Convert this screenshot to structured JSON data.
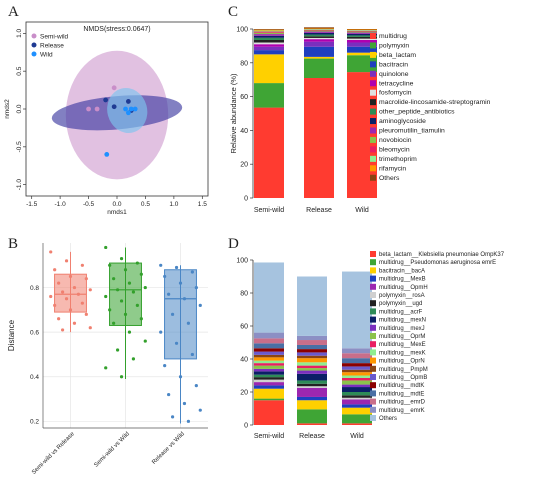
{
  "panels": {
    "a": "A",
    "b": "B",
    "c": "C",
    "d": "D"
  },
  "chart_data": [
    {
      "id": "A",
      "type": "scatter",
      "title": "NMDS(stress:0.0647)",
      "xlabel": "nmds1",
      "ylabel": "nmds2",
      "xlim": [
        -1.6,
        1.6
      ],
      "ylim": [
        -1.15,
        1.15
      ],
      "xticks": [
        "-1.5",
        "-1.0",
        "-0.5",
        "0.0",
        "0.5",
        "1.0",
        "1.5"
      ],
      "yticks": [
        "-1.0",
        "-0.5",
        "0.0",
        "0.5",
        "1.0"
      ],
      "legend_position": "top-left",
      "series": [
        {
          "name": "Semi-wild",
          "color": "#c98ec9",
          "points": [
            [
              -0.05,
              0.28
            ],
            [
              -0.35,
              0.0
            ],
            [
              -0.5,
              0.0
            ]
          ]
        },
        {
          "name": "Release",
          "color": "#1f3a93",
          "points": [
            [
              -0.2,
              0.12
            ],
            [
              -0.05,
              0.03
            ],
            [
              0.2,
              0.1
            ],
            [
              0.25,
              -0.02
            ]
          ]
        },
        {
          "name": "Wild",
          "color": "#1e90ff",
          "points": [
            [
              0.15,
              0.0
            ],
            [
              0.25,
              0.0
            ],
            [
              0.32,
              0.0
            ],
            [
              0.2,
              -0.05
            ],
            [
              -0.18,
              -0.6
            ]
          ]
        }
      ],
      "ellipses": [
        {
          "series": "Semi-wild",
          "color": "#c98ec9",
          "opacity": 0.55,
          "cx": 0.0,
          "cy": -0.08,
          "rx": 0.9,
          "ry": 0.85,
          "angle": 0
        },
        {
          "series": "Release",
          "color": "#3f3ca2",
          "opacity": 0.65,
          "cx": 0.0,
          "cy": -0.05,
          "rx": 1.15,
          "ry": 0.22,
          "angle": -5
        },
        {
          "series": "Wild",
          "color": "#7dc4ee",
          "opacity": 0.65,
          "cx": 0.18,
          "cy": -0.02,
          "rx": 0.35,
          "ry": 0.3,
          "angle": -15
        }
      ]
    },
    {
      "id": "B",
      "type": "box",
      "xlabel": "",
      "ylabel": "Distance",
      "ylim": [
        0.17,
        1.0
      ],
      "yticks": [
        0.2,
        0.4,
        0.6,
        0.8
      ],
      "categories": [
        "Semi-wild vs Release",
        "Semi-wild vs Wild",
        "Release vs Wild"
      ],
      "boxes": [
        {
          "color": "#f08070",
          "q1": 0.69,
          "median": 0.77,
          "q3": 0.86,
          "whisker_low": 0.6,
          "whisker_high": 0.96,
          "points": [
            0.96,
            0.92,
            0.9,
            0.88,
            0.85,
            0.84,
            0.82,
            0.8,
            0.79,
            0.78,
            0.77,
            0.76,
            0.75,
            0.73,
            0.72,
            0.7,
            0.68,
            0.66,
            0.64,
            0.62,
            0.61
          ]
        },
        {
          "color": "#33a02c",
          "q1": 0.63,
          "median": 0.79,
          "q3": 0.91,
          "whisker_low": 0.39,
          "whisker_high": 0.98,
          "points": [
            0.98,
            0.93,
            0.91,
            0.9,
            0.88,
            0.86,
            0.84,
            0.82,
            0.8,
            0.79,
            0.78,
            0.76,
            0.74,
            0.72,
            0.7,
            0.68,
            0.66,
            0.64,
            0.6,
            0.56,
            0.52,
            0.48,
            0.44,
            0.4
          ]
        },
        {
          "color": "#4a86c5",
          "q1": 0.48,
          "median": 0.75,
          "q3": 0.88,
          "whisker_low": 0.19,
          "whisker_high": 0.9,
          "points": [
            0.9,
            0.89,
            0.87,
            0.85,
            0.82,
            0.8,
            0.77,
            0.75,
            0.72,
            0.68,
            0.64,
            0.6,
            0.55,
            0.5,
            0.45,
            0.4,
            0.36,
            0.32,
            0.28,
            0.25,
            0.22,
            0.2
          ]
        }
      ]
    },
    {
      "id": "C",
      "type": "bar",
      "stacked": true,
      "ylabel": "Relative abundance (%)",
      "ylim": [
        0,
        100
      ],
      "yticks": [
        0,
        20,
        40,
        60,
        80,
        100
      ],
      "categories": [
        "Semi-wild",
        "Release",
        "Wild"
      ],
      "legend_position": "right",
      "series": [
        {
          "name": "multidrug",
          "color": "#ff3b30",
          "values": [
            53.5,
            71.0,
            74.5
          ]
        },
        {
          "name": "polymyxin",
          "color": "#3fa535",
          "values": [
            14.5,
            11.5,
            10.0
          ]
        },
        {
          "name": "beta_lactam",
          "color": "#ffd000",
          "values": [
            17.0,
            1.0,
            1.5
          ]
        },
        {
          "name": "bacitracin",
          "color": "#1f3fbf",
          "values": [
            2.5,
            6.0,
            3.5
          ]
        },
        {
          "name": "quinolone",
          "color": "#7b2fbe",
          "values": [
            2.0,
            3.0,
            2.5
          ]
        },
        {
          "name": "tetracycline",
          "color": "#b000b0",
          "values": [
            1.5,
            1.5,
            1.5
          ]
        },
        {
          "name": "fosfomycin",
          "color": "#e0e0e0",
          "values": [
            1.0,
            0.7,
            0.8
          ]
        },
        {
          "name": "macrolide-lincosamide-streptogramin",
          "color": "#222222",
          "values": [
            1.5,
            1.0,
            1.0
          ]
        },
        {
          "name": "other_peptide_antibiotics",
          "color": "#2e8b57",
          "values": [
            1.3,
            1.0,
            0.9
          ]
        },
        {
          "name": "aminoglycoside",
          "color": "#0b1f66",
          "values": [
            1.2,
            1.0,
            0.9
          ]
        },
        {
          "name": "pleuromutilin_tiamulin",
          "color": "#9c27b0",
          "values": [
            1.0,
            0.8,
            0.8
          ]
        },
        {
          "name": "novobiocin",
          "color": "#8bc34a",
          "values": [
            0.8,
            0.6,
            0.6
          ]
        },
        {
          "name": "bleomycin",
          "color": "#e91e63",
          "values": [
            0.7,
            0.5,
            0.5
          ]
        },
        {
          "name": "trimethoprim",
          "color": "#90ee90",
          "values": [
            0.6,
            0.4,
            0.4
          ]
        },
        {
          "name": "rifamycin",
          "color": "#ff9800",
          "values": [
            0.5,
            0.3,
            0.3
          ]
        },
        {
          "name": "Others",
          "color": "#8b4513",
          "values": [
            0.4,
            0.7,
            0.3
          ]
        }
      ]
    },
    {
      "id": "D",
      "type": "bar",
      "stacked": true,
      "ylabel": "",
      "ylim": [
        0,
        100
      ],
      "yticks": [
        0,
        20,
        40,
        60,
        80,
        100
      ],
      "categories": [
        "Semi-wild",
        "Release",
        "Wild"
      ],
      "legend_position": "right",
      "series": [
        {
          "name": "beta_lactam__Klebsiella pneumoniae OmpK37",
          "color": "#ff3b30",
          "values": [
            15.0,
            1.0,
            1.0
          ]
        },
        {
          "name": "multidrug__Pseudomonas aeruginosa emrE",
          "color": "#3fa535",
          "values": [
            1.0,
            8.5,
            5.5
          ]
        },
        {
          "name": "bacitracin__bacA",
          "color": "#ffd000",
          "values": [
            6.0,
            5.5,
            4.0
          ]
        },
        {
          "name": "multidrug__MexB",
          "color": "#1f3fbf",
          "values": [
            2.0,
            2.0,
            2.0
          ]
        },
        {
          "name": "multidrug__OpmH",
          "color": "#9c27b0",
          "values": [
            2.0,
            5.5,
            3.0
          ]
        },
        {
          "name": "polymyxin__rosA",
          "color": "#d0d0d0",
          "values": [
            1.5,
            1.0,
            1.0
          ]
        },
        {
          "name": "polymyxin__ugd",
          "color": "#222222",
          "values": [
            1.5,
            1.5,
            1.5
          ]
        },
        {
          "name": "multidrug__acrF",
          "color": "#2e8b57",
          "values": [
            1.5,
            2.0,
            2.0
          ]
        },
        {
          "name": "multidrug__mexN",
          "color": "#0b1f66",
          "values": [
            2.0,
            4.0,
            3.0
          ]
        },
        {
          "name": "multidrug__mexJ",
          "color": "#7b2fbe",
          "values": [
            1.5,
            2.0,
            1.5
          ]
        },
        {
          "name": "multidrug__OprM",
          "color": "#8bc34a",
          "values": [
            2.0,
            1.5,
            2.5
          ]
        },
        {
          "name": "multidrug__MexE",
          "color": "#e91e63",
          "values": [
            1.5,
            1.5,
            1.5
          ]
        },
        {
          "name": "multidrug__mexK",
          "color": "#90ee90",
          "values": [
            1.5,
            2.0,
            1.5
          ]
        },
        {
          "name": "multidrug__OprN",
          "color": "#ff9800",
          "values": [
            2.0,
            2.5,
            2.0
          ]
        },
        {
          "name": "multidrug__PmpM",
          "color": "#8b4513",
          "values": [
            1.5,
            1.5,
            1.5
          ]
        },
        {
          "name": "multidrug__OpmB",
          "color": "#6a5acd",
          "values": [
            2.0,
            2.0,
            2.0
          ]
        },
        {
          "name": "multidrug__mdtK",
          "color": "#8b0000",
          "values": [
            2.0,
            2.0,
            2.0
          ]
        },
        {
          "name": "multidrug__mdtE",
          "color": "#4a6fa5",
          "values": [
            3.0,
            2.5,
            3.0
          ]
        },
        {
          "name": "multidrug__emrD",
          "color": "#c96e8a",
          "values": [
            3.0,
            3.0,
            3.0
          ]
        },
        {
          "name": "multidrug__emrK",
          "color": "#8c8fc4",
          "values": [
            3.5,
            2.5,
            3.0
          ]
        },
        {
          "name": "Others",
          "color": "#a6c3df",
          "values": [
            42.5,
            36.0,
            46.5
          ]
        }
      ]
    }
  ]
}
